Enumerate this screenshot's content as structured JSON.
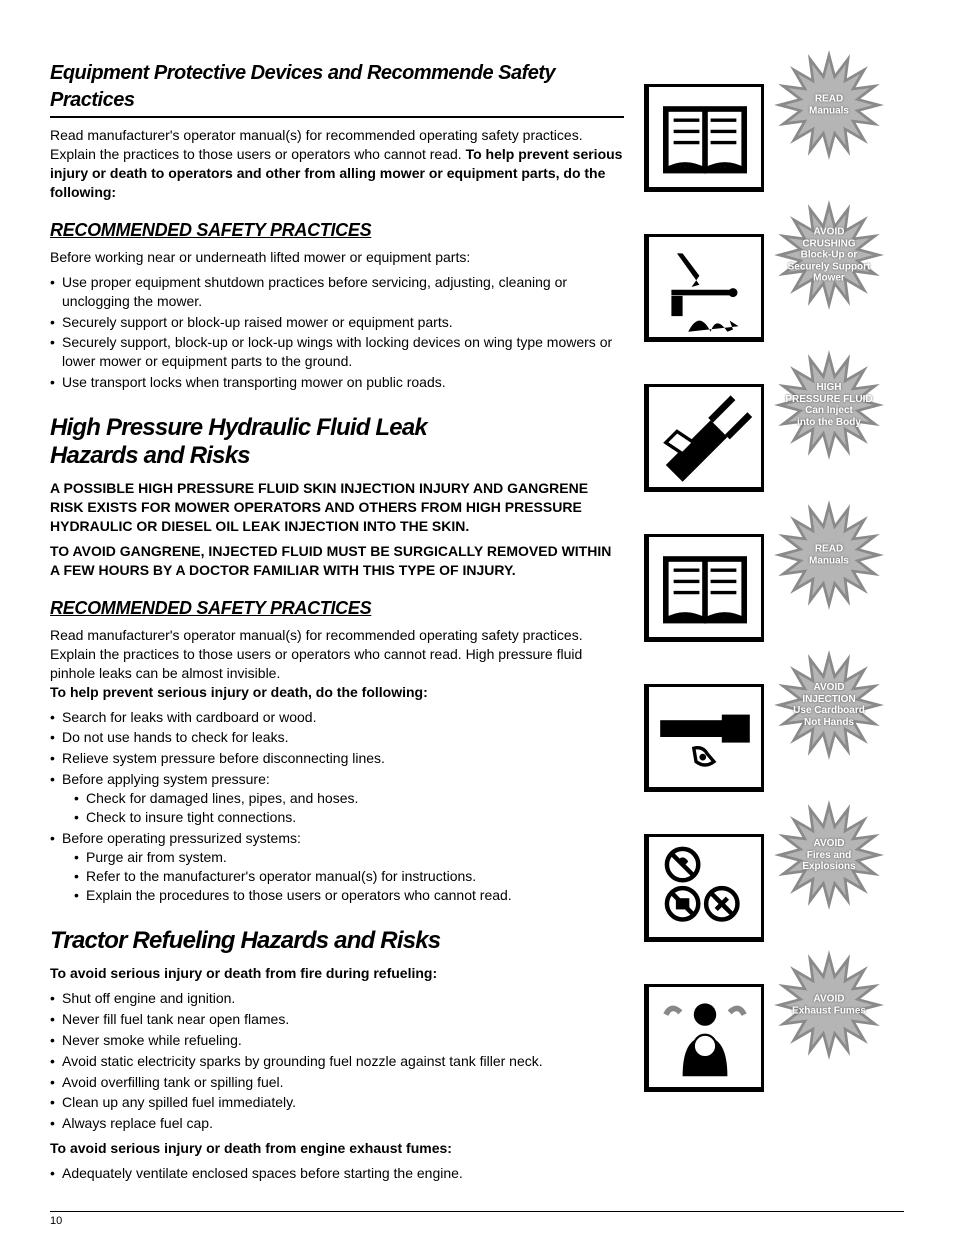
{
  "section1": {
    "title": "Equipment Protective Devices and Recommende Safety Practices",
    "p1": "Read manufacturer's operator manual(s) for recommended operating safety practices. Explain the practices to those users or operators who cannot read.",
    "p1bold": "To help prevent serious injury or death to operators and other from alling mower or equipment parts, do the following:",
    "subhead": "RECOMMENDED SAFETY PRACTICES",
    "intro": "Before working near or underneath lifted mower or equipment parts:",
    "bullets": [
      "Use proper equipment shutdown practices before servicing, adjusting, cleaning or unclogging the mower.",
      "Securely support or block-up raised mower or equipment parts.",
      "Securely support, block-up or lock-up wings with locking devices on wing type mowers or lower mower or equipment parts to the ground.",
      "Use transport locks when transporting mower on public roads."
    ]
  },
  "section2": {
    "title1": "High Pressure Hydraulic Fluid Leak",
    "title2": "Hazards and Risks",
    "warn1": "A POSSIBLE HIGH PRESSURE FLUID SKIN INJECTION INJURY AND GANGRENE RISK EXISTS FOR MOWER OPERATORS AND OTHERS FROM HIGH PRESSURE HYDRAULIC OR DIESEL OIL LEAK INJECTION INTO THE SKIN.",
    "warn2": "TO AVOID GANGRENE, INJECTED FLUID MUST BE SURGICALLY REMOVED WITHIN A FEW HOURS BY A DOCTOR FAMILIAR WITH THIS TYPE OF INJURY.",
    "subhead": "RECOMMENDED SAFETY PRACTICES",
    "p1": "Read manufacturer's operator manual(s) for recommended operating safety practices. Explain the practices to those users or operators who cannot read. High pressure fluid pinhole leaks can be almost invisible.",
    "p1bold": "To help prevent serious injury or death, do the following:",
    "bullets": [
      "Search for leaks with cardboard or wood.",
      "Do not use hands to check for leaks.",
      "Relieve system pressure before disconnecting lines.",
      "Before applying system pressure:",
      "Before operating pressurized systems:"
    ],
    "sub4": [
      "Check for damaged lines, pipes, and hoses.",
      "Check to insure tight connections."
    ],
    "sub5": [
      "Purge air from system.",
      "Refer to the manufacturer's operator manual(s) for instructions.",
      "Explain the procedures to those users or operators who cannot read."
    ]
  },
  "section3": {
    "title": "Tractor Refueling Hazards and Risks",
    "lead1": "To avoid serious injury or death from fire during refueling:",
    "bullets1": [
      "Shut off engine and ignition.",
      "Never fill fuel tank near open flames.",
      "Never smoke while refueling.",
      "Avoid static electricity sparks by grounding fuel nozzle against tank filler neck.",
      "Avoid overfilling tank or spilling fuel.",
      "Clean up any spilled fuel immediately.",
      "Always replace fuel cap."
    ],
    "lead2": "To avoid serious injury or death from engine exhaust fumes:",
    "bullets2": [
      "Adequately ventilate enclosed spaces before starting the engine."
    ]
  },
  "callouts": [
    {
      "label_html": "READ<br>Manuals",
      "icon": "book"
    },
    {
      "label_html": "AVOID<br>CRUSHING<br>Block-Up or<br>Securely Support<br>Mower",
      "icon": "crush"
    },
    {
      "label_html": "HIGH<br>PRESSURE FLUID<br>Can Inject<br>into the Body",
      "icon": "inject"
    },
    {
      "label_html": "READ<br>Manuals",
      "icon": "book"
    },
    {
      "label_html": "AVOID<br>INJECTION<br>Use Cardboard<br>Not Hands",
      "icon": "cardboard"
    },
    {
      "label_html": "AVOID<br>Fires and<br>Explosions",
      "icon": "fire"
    },
    {
      "label_html": "AVOID<br>Exhaust Fumes",
      "icon": "fumes"
    }
  ],
  "style": {
    "starburst_fill": "#8a8a8a",
    "starburst_mid": "#b5b5b5",
    "text_color": "#000000"
  },
  "page_number": "10"
}
